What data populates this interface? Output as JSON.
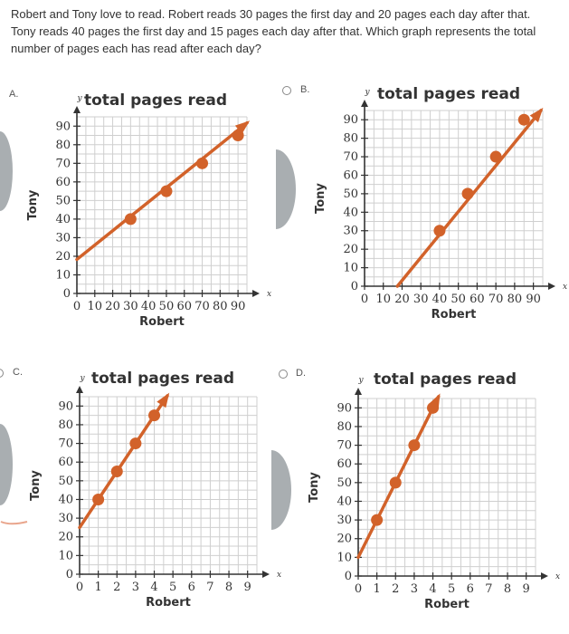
{
  "question": {
    "text": "Robert and Tony love to read. Robert reads 30 pages the first day and 20 pages each day after that. Tony reads 40 pages the first day and 15 pages each day after that. Which graph represents the total number of pages each has read after each day?"
  },
  "colors": {
    "line": "#d2622a",
    "point": "#d2622a",
    "grid": "#cfcfcf",
    "axis": "#333333",
    "side_shape": "#a9aeb1"
  },
  "choices": [
    {
      "letter": "A.",
      "icon": "radio-icon"
    },
    {
      "letter": "B.",
      "icon": "radio-icon"
    },
    {
      "letter": "C.",
      "icon": "radio-icon"
    },
    {
      "letter": "D.",
      "icon": "radio-icon"
    }
  ],
  "chart_data": [
    {
      "type": "line",
      "title": "total pages read",
      "xlabel": "Robert",
      "ylabel": "Tony",
      "xvar": "x",
      "yvar": "y",
      "xlim": [
        0,
        95
      ],
      "ylim": [
        0,
        95
      ],
      "xticks": [
        "0",
        "10",
        "20",
        "30",
        "40",
        "50",
        "60",
        "70",
        "80",
        "90"
      ],
      "yticks": [
        "0",
        "10",
        "20",
        "30",
        "40",
        "50",
        "60",
        "70",
        "80",
        "90"
      ],
      "grid": true,
      "line": {
        "x": [
          0,
          95
        ],
        "y": [
          18.3,
          91.7
        ]
      },
      "points": {
        "x": [
          30,
          50,
          70,
          90
        ],
        "y": [
          40,
          55,
          70,
          85
        ]
      }
    },
    {
      "type": "line",
      "title": "total pages read",
      "xlabel": "Robert",
      "ylabel": "Tony",
      "xvar": "x",
      "yvar": "y",
      "xlim": [
        0,
        95
      ],
      "ylim": [
        0,
        95
      ],
      "xticks": [
        "0",
        "10",
        "20",
        "30",
        "40",
        "50",
        "60",
        "70",
        "80",
        "90"
      ],
      "yticks": [
        "0",
        "10",
        "20",
        "30",
        "40",
        "50",
        "60",
        "70",
        "80",
        "90"
      ],
      "grid": true,
      "line": {
        "x": [
          17.5,
          94
        ],
        "y": [
          0,
          95
        ]
      },
      "points": {
        "x": [
          40,
          55,
          70,
          85
        ],
        "y": [
          30,
          50,
          70,
          90
        ]
      }
    },
    {
      "type": "line",
      "title": "total pages read",
      "xlabel": "Robert",
      "ylabel": "Tony",
      "xvar": "x",
      "yvar": "y",
      "xlim": [
        0,
        9.5
      ],
      "ylim": [
        0,
        95
      ],
      "xticks": [
        "0",
        "1",
        "2",
        "3",
        "4",
        "5",
        "6",
        "7",
        "8",
        "9"
      ],
      "yticks": [
        "0",
        "10",
        "20",
        "30",
        "40",
        "50",
        "60",
        "70",
        "80",
        "90"
      ],
      "grid": true,
      "line": {
        "x": [
          0,
          4.7
        ],
        "y": [
          25,
          95.5
        ]
      },
      "points": {
        "x": [
          1,
          2,
          3,
          4
        ],
        "y": [
          40,
          55,
          70,
          85
        ]
      }
    },
    {
      "type": "line",
      "title": "total pages read",
      "xlabel": "Robert",
      "ylabel": "Tony",
      "xvar": "x",
      "yvar": "y",
      "xlim": [
        0,
        9.5
      ],
      "ylim": [
        0,
        95
      ],
      "xticks": [
        "0",
        "1",
        "2",
        "3",
        "4",
        "5",
        "6",
        "7",
        "8",
        "9"
      ],
      "yticks": [
        "0",
        "10",
        "20",
        "30",
        "40",
        "50",
        "60",
        "70",
        "80",
        "90"
      ],
      "grid": true,
      "line": {
        "x": [
          0,
          4.3
        ],
        "y": [
          10,
          96
        ]
      },
      "points": {
        "x": [
          1,
          2,
          3,
          4
        ],
        "y": [
          30,
          50,
          70,
          90
        ]
      }
    }
  ]
}
